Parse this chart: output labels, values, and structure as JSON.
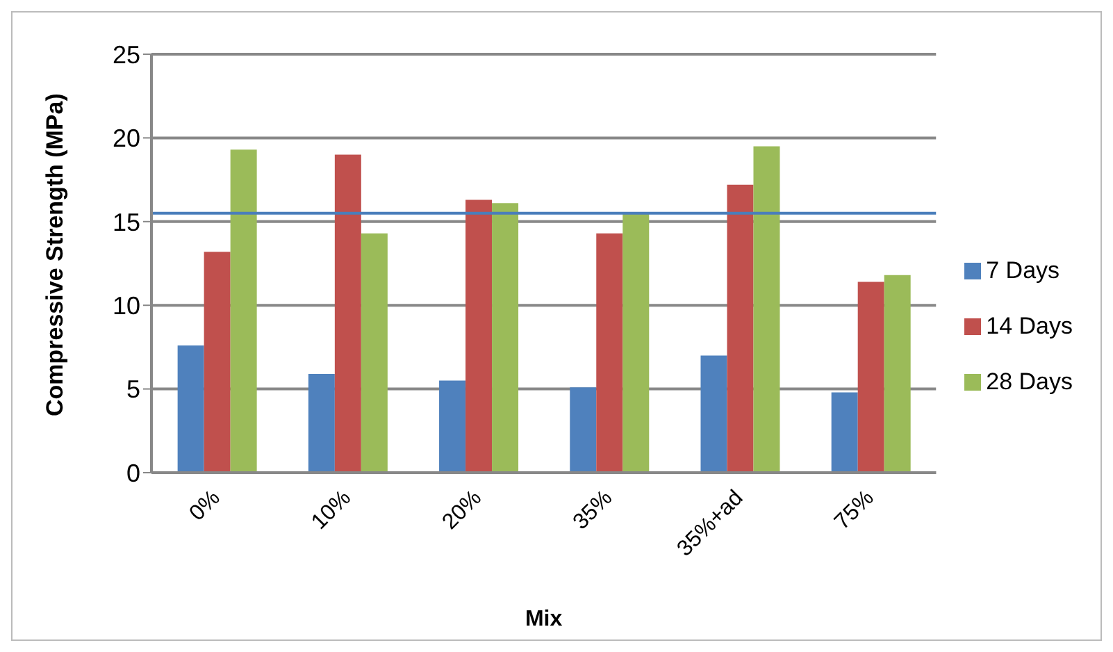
{
  "chart_data": {
    "type": "bar",
    "xlabel": "Mix",
    "ylabel": "Compressive Strength (MPa)",
    "categories": [
      "0%",
      "10%",
      "20%",
      "35%",
      "35%+ad",
      "75%"
    ],
    "series": [
      {
        "name": "7 Days",
        "color": "#4f81bd",
        "values": [
          7.6,
          5.9,
          5.5,
          5.1,
          7.0,
          4.8
        ]
      },
      {
        "name": "14 Days",
        "color": "#c0504d",
        "values": [
          13.2,
          19.0,
          16.3,
          14.3,
          17.2,
          11.4
        ]
      },
      {
        "name": "28 Days",
        "color": "#9bbb59",
        "values": [
          19.3,
          14.3,
          16.1,
          15.5,
          19.5,
          11.8
        ]
      }
    ],
    "ylim": [
      0,
      25
    ],
    "yticks": [
      0,
      5,
      10,
      15,
      20,
      25
    ],
    "grid": "y",
    "legend": "right",
    "ref_lines": [
      {
        "axis": "y",
        "value": 15.5,
        "color": "#4a7ebb"
      }
    ]
  }
}
